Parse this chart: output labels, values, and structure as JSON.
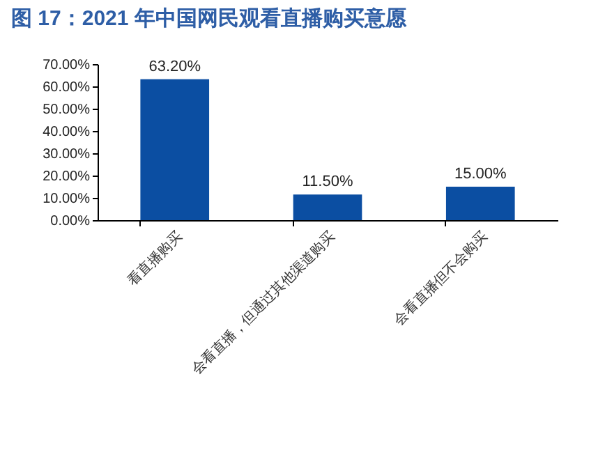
{
  "chart_data": {
    "type": "bar",
    "title": "图 17：2021 年中国网民观看直播购买意愿",
    "categories": [
      "看直播购买",
      "会看直播，但通过其他渠道购买",
      "会看直播但不会购买"
    ],
    "values": [
      63.2,
      11.5,
      15.0
    ],
    "value_labels": [
      "63.20%",
      "11.50%",
      "15.00%"
    ],
    "color": "#0b4ea2",
    "ylim": [
      0,
      70
    ],
    "yticks": [
      {
        "value": 0,
        "label": "0.00%"
      },
      {
        "value": 10,
        "label": "10.00%"
      },
      {
        "value": 20,
        "label": "20.00%"
      },
      {
        "value": 30,
        "label": "30.00%"
      },
      {
        "value": 40,
        "label": "40.00%"
      },
      {
        "value": 50,
        "label": "50.00%"
      },
      {
        "value": 60,
        "label": "60.00%"
      },
      {
        "value": 70,
        "label": "70.00%"
      }
    ],
    "grid": false
  }
}
